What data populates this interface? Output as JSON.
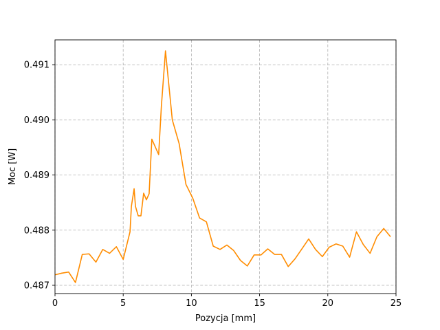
{
  "chart_data": {
    "type": "line",
    "xlabel": "Pozycja [mm]",
    "ylabel": "Moc [W]",
    "xlim": [
      0,
      25
    ],
    "ylim": [
      0.48685,
      0.49145
    ],
    "xticks": [
      0,
      5,
      10,
      15,
      20,
      25
    ],
    "xtick_labels": [
      "0",
      "5",
      "10",
      "15",
      "20",
      "25"
    ],
    "yticks": [
      0.487,
      0.488,
      0.489,
      0.49,
      0.491
    ],
    "ytick_labels": [
      "0.487",
      "0.488",
      "0.489",
      "0.490",
      "0.491"
    ],
    "grid": true,
    "series": [
      {
        "color": "#ff8c00",
        "x": [
          0,
          0.5,
          1.0,
          1.5,
          2.0,
          2.5,
          3.0,
          3.5,
          4.0,
          4.5,
          5.0,
          5.5,
          5.6,
          5.8,
          5.9,
          6.1,
          6.3,
          6.5,
          6.7,
          6.9,
          7.1,
          7.6,
          7.8,
          8.1,
          8.6,
          9.1,
          9.6,
          10.1,
          10.6,
          11.1,
          11.6,
          12.1,
          12.6,
          13.1,
          13.6,
          14.1,
          14.6,
          15.1,
          15.6,
          16.1,
          16.6,
          17.1,
          17.6,
          18.1,
          18.6,
          19.1,
          19.6,
          20.1,
          20.6,
          21.1,
          21.6,
          22.1,
          22.6,
          23.1,
          23.6,
          24.1,
          24.6
        ],
        "values": [
          0.48719,
          0.48722,
          0.48724,
          0.48705,
          0.48756,
          0.48757,
          0.48742,
          0.48765,
          0.48758,
          0.4877,
          0.48747,
          0.48797,
          0.48843,
          0.48875,
          0.48843,
          0.48826,
          0.48826,
          0.48867,
          0.48855,
          0.48866,
          0.48965,
          0.48937,
          0.49025,
          0.49125,
          0.49,
          0.48957,
          0.48883,
          0.48858,
          0.48822,
          0.48815,
          0.48771,
          0.48765,
          0.48773,
          0.48763,
          0.48745,
          0.48735,
          0.48755,
          0.48755,
          0.48766,
          0.48756,
          0.48756,
          0.48734,
          0.48748,
          0.48766,
          0.48784,
          0.48765,
          0.48752,
          0.48769,
          0.48775,
          0.48771,
          0.48751,
          0.48797,
          0.48774,
          0.48758,
          0.48788,
          0.48803,
          0.48788
        ]
      }
    ]
  }
}
